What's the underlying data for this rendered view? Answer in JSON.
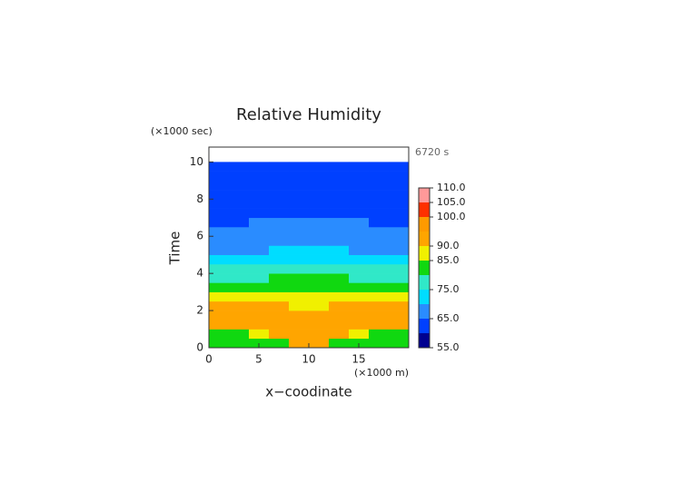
{
  "chart_data": {
    "type": "contour",
    "title": "Relative Humidity",
    "x_label": "x−coodinate",
    "y_label": "Time",
    "y_unit": "(×1000 sec)",
    "x_unit": "(×1000 m)",
    "time_annotation": "6720 s",
    "x": [
      1,
      3,
      5,
      7,
      9,
      11,
      13,
      15,
      17,
      19
    ],
    "y": [
      0.25,
      0.75,
      1.25,
      1.75,
      2.25,
      2.75,
      3.25,
      3.75,
      4.25,
      4.75,
      5.25,
      5.75,
      6.25,
      6.75,
      7.25,
      7.75,
      8.25,
      8.75,
      9.25,
      9.75
    ],
    "z": [
      [
        82,
        82,
        82,
        84,
        92,
        92,
        84,
        82,
        82,
        82
      ],
      [
        84,
        84,
        88,
        92,
        94,
        94,
        92,
        88,
        84,
        84
      ],
      [
        94,
        94,
        94,
        94,
        94,
        94,
        94,
        94,
        94,
        94
      ],
      [
        94,
        94,
        94,
        94,
        94,
        94,
        94,
        94,
        94,
        94
      ],
      [
        93,
        93,
        93,
        92,
        89,
        89,
        92,
        93,
        93,
        93
      ],
      [
        89,
        89,
        89,
        88,
        86,
        86,
        88,
        89,
        89,
        89
      ],
      [
        82,
        82,
        82,
        82,
        82,
        82,
        82,
        82,
        82,
        82
      ],
      [
        77,
        77,
        78,
        80,
        82,
        82,
        80,
        78,
        77,
        77
      ],
      [
        77,
        77,
        77,
        77,
        78,
        78,
        77,
        77,
        77,
        77
      ],
      [
        73,
        73,
        73,
        73,
        72,
        72,
        73,
        73,
        73,
        73
      ],
      [
        68,
        68,
        69,
        70,
        70,
        70,
        70,
        69,
        68,
        68
      ],
      [
        68,
        68,
        68,
        68,
        68,
        68,
        68,
        68,
        68,
        68
      ],
      [
        66,
        67,
        68,
        68,
        68,
        68,
        68,
        68,
        67,
        66
      ],
      [
        62,
        63,
        67,
        68,
        68,
        68,
        68,
        67,
        63,
        62
      ],
      [
        62,
        62,
        62,
        62,
        62,
        62,
        62,
        62,
        62,
        62
      ],
      [
        62,
        62,
        62,
        62,
        62,
        62,
        62,
        62,
        62,
        62
      ],
      [
        62,
        62,
        62,
        62,
        62,
        62,
        62,
        62,
        62,
        62
      ],
      [
        62,
        62,
        62,
        62,
        62,
        62,
        62,
        62,
        62,
        62
      ],
      [
        62,
        62,
        62,
        62,
        62,
        62,
        62,
        62,
        62,
        62
      ],
      [
        62,
        62,
        62,
        62,
        62,
        62,
        62,
        62,
        62,
        62
      ]
    ],
    "xlim": [
      0,
      20
    ],
    "xticks": [
      0,
      5,
      10,
      15
    ],
    "ylim": [
      0,
      10.8
    ],
    "yticks": [
      0,
      2,
      4,
      6,
      8,
      10
    ],
    "levels": [
      55,
      60,
      65,
      70,
      75,
      80,
      85,
      90,
      95,
      100,
      105,
      110
    ],
    "colors": [
      "#000090",
      "#0040ff",
      "#2a8cff",
      "#00ddff",
      "#30e8c8",
      "#10d810",
      "#f0f000",
      "#ffa500",
      "#ff9a00",
      "#ff3000",
      "#ff9999"
    ],
    "colorbar_lim": [
      55,
      110
    ],
    "colorbar_ticks": [
      {
        "value": 55,
        "label": "55.0"
      },
      {
        "value": 65,
        "label": "65.0"
      },
      {
        "value": 75,
        "label": "75.0"
      },
      {
        "value": 85,
        "label": "85.0"
      },
      {
        "value": 90,
        "label": "90.0"
      },
      {
        "value": 100,
        "label": "100.0"
      },
      {
        "value": 105,
        "label": "105.0"
      },
      {
        "value": 110,
        "label": "110.0"
      }
    ]
  }
}
